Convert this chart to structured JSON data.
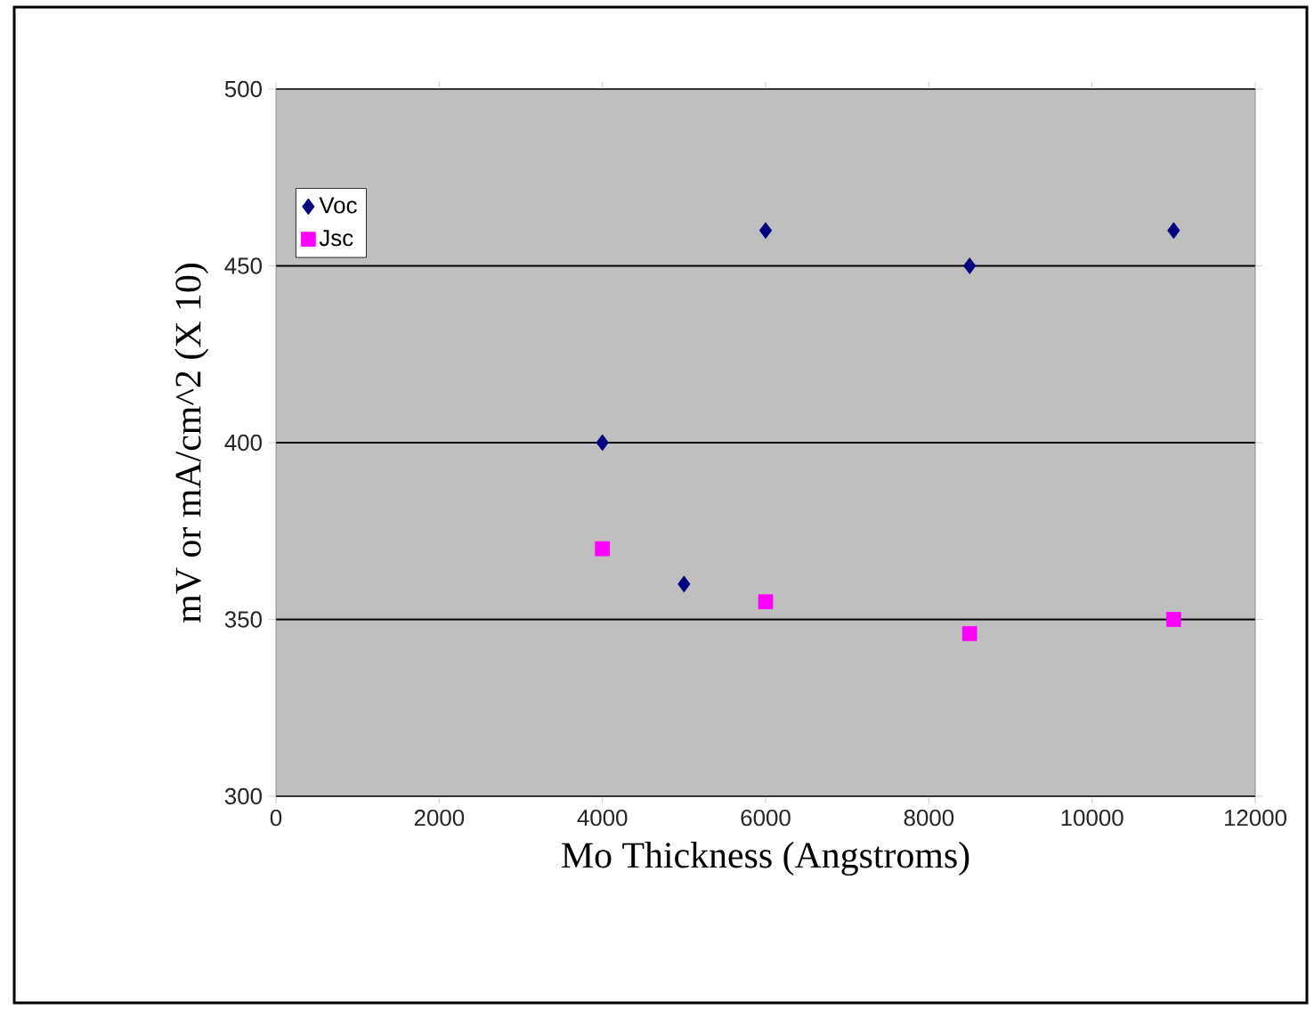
{
  "chart_data": {
    "type": "scatter",
    "xlabel": "Mo Thickness (Angstroms)",
    "ylabel": "mV or mA/cm^2 (X 10)",
    "xlim": [
      0,
      12000
    ],
    "xticks": [
      0,
      2000,
      4000,
      6000,
      8000,
      10000,
      12000
    ],
    "ylim": [
      300,
      500
    ],
    "yticks": [
      300,
      350,
      400,
      450,
      500
    ],
    "grid": "y",
    "legend": "top left",
    "series": [
      {
        "name": "Voc",
        "color": "#000080",
        "marker": "diamond",
        "x": [
          4000,
          5000,
          6000,
          8500,
          11000
        ],
        "values": [
          400,
          360,
          460,
          450,
          460
        ]
      },
      {
        "name": "Jsc",
        "color": "#ff00ff",
        "marker": "square",
        "x": [
          4000,
          6000,
          8500,
          11000
        ],
        "values": [
          370,
          355,
          346,
          350
        ]
      }
    ]
  }
}
